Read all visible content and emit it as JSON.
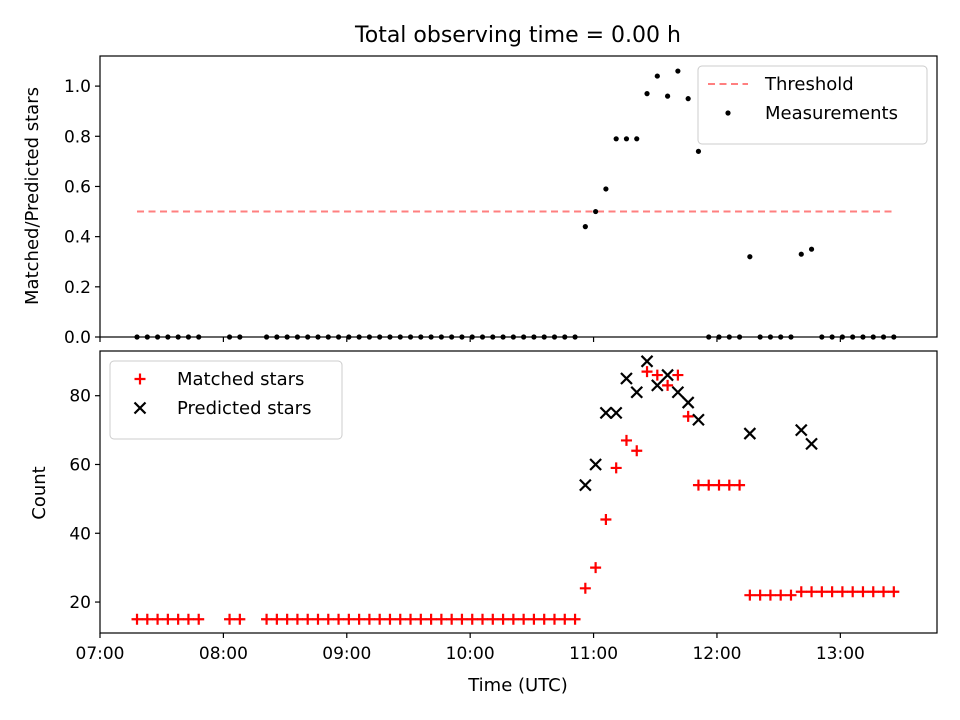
{
  "chart_data": [
    {
      "type": "scatter",
      "title": "Total observing time = 0.00 h",
      "xlabel": "",
      "ylabel": "Matched/Predicted stars",
      "xlim": [
        "07:00",
        "13:47"
      ],
      "ylim": [
        0,
        1.12
      ],
      "yticks": [
        0.0,
        0.2,
        0.4,
        0.6,
        0.8,
        1.0
      ],
      "ytick_labels": [
        "0.0",
        "0.2",
        "0.4",
        "0.6",
        "0.8",
        "1.0"
      ],
      "xtick_labels_visible": false,
      "legend_position": "top-right",
      "series": [
        {
          "name": "Threshold",
          "kind": "line",
          "style": "dashed",
          "color": "#ff7f7f",
          "x": [
            "07:18",
            "13:25"
          ],
          "y": [
            0.5,
            0.5
          ]
        },
        {
          "name": "Measurements",
          "kind": "scatter",
          "marker": "dot",
          "color": "#000000",
          "x": [
            "07:18",
            "07:23",
            "07:28",
            "07:33",
            "07:38",
            "07:43",
            "07:48",
            "08:03",
            "08:08",
            "08:21",
            "08:26",
            "08:31",
            "08:36",
            "08:41",
            "08:46",
            "08:51",
            "08:56",
            "09:01",
            "09:06",
            "09:11",
            "09:16",
            "09:21",
            "09:26",
            "09:31",
            "09:36",
            "09:41",
            "09:46",
            "09:51",
            "09:56",
            "10:01",
            "10:06",
            "10:11",
            "10:16",
            "10:21",
            "10:26",
            "10:31",
            "10:36",
            "10:41",
            "10:46",
            "10:51",
            "10:56",
            "11:01",
            "11:06",
            "11:11",
            "11:16",
            "11:21",
            "11:26",
            "11:31",
            "11:36",
            "11:41",
            "11:46",
            "11:51",
            "11:56",
            "12:01",
            "12:06",
            "12:11",
            "12:16",
            "12:21",
            "12:26",
            "12:31",
            "12:36",
            "12:41",
            "12:46",
            "12:51",
            "12:56",
            "13:01",
            "13:06",
            "13:11",
            "13:16",
            "13:21",
            "13:26"
          ],
          "y": [
            0,
            0,
            0,
            0,
            0,
            0,
            0,
            0,
            0,
            0,
            0,
            0,
            0,
            0,
            0,
            0,
            0,
            0,
            0,
            0,
            0,
            0,
            0,
            0,
            0,
            0,
            0,
            0,
            0,
            0,
            0,
            0,
            0,
            0,
            0,
            0,
            0,
            0,
            0,
            0,
            0.44,
            0.5,
            0.59,
            0.79,
            0.79,
            0.79,
            0.97,
            1.04,
            0.96,
            1.06,
            0.95,
            0.74,
            0,
            0,
            0,
            0,
            0.32,
            0,
            0,
            0,
            0,
            0.33,
            0.35,
            0,
            0,
            0,
            0,
            0,
            0,
            0,
            0
          ]
        }
      ]
    },
    {
      "type": "scatter",
      "title": "",
      "xlabel": "Time (UTC)",
      "ylabel": "Count",
      "xlim": [
        "07:00",
        "13:47"
      ],
      "ylim": [
        11,
        93
      ],
      "yticks": [
        20,
        40,
        60,
        80
      ],
      "ytick_labels": [
        "20",
        "40",
        "60",
        "80"
      ],
      "xticks": [
        "07:00",
        "08:00",
        "09:00",
        "10:00",
        "11:00",
        "12:00",
        "13:00"
      ],
      "xtick_labels": [
        "07:00",
        "08:00",
        "09:00",
        "10:00",
        "11:00",
        "12:00",
        "13:00"
      ],
      "legend_position": "top-left",
      "series": [
        {
          "name": "Matched stars",
          "kind": "scatter",
          "marker": "plus",
          "color": "#ff0000",
          "x": [
            "07:18",
            "07:23",
            "07:28",
            "07:33",
            "07:38",
            "07:43",
            "07:48",
            "08:03",
            "08:08",
            "08:21",
            "08:26",
            "08:31",
            "08:36",
            "08:41",
            "08:46",
            "08:51",
            "08:56",
            "09:01",
            "09:06",
            "09:11",
            "09:16",
            "09:21",
            "09:26",
            "09:31",
            "09:36",
            "09:41",
            "09:46",
            "09:51",
            "09:56",
            "10:01",
            "10:06",
            "10:11",
            "10:16",
            "10:21",
            "10:26",
            "10:31",
            "10:36",
            "10:41",
            "10:46",
            "10:51",
            "10:56",
            "11:01",
            "11:06",
            "11:11",
            "11:16",
            "11:21",
            "11:26",
            "11:31",
            "11:36",
            "11:41",
            "11:46",
            "11:51",
            "11:56",
            "12:01",
            "12:06",
            "12:11",
            "12:16",
            "12:21",
            "12:26",
            "12:31",
            "12:36",
            "12:41",
            "12:46",
            "12:51",
            "12:56",
            "13:01",
            "13:06",
            "13:11",
            "13:16",
            "13:21",
            "13:26"
          ],
          "y": [
            15,
            15,
            15,
            15,
            15,
            15,
            15,
            15,
            15,
            15,
            15,
            15,
            15,
            15,
            15,
            15,
            15,
            15,
            15,
            15,
            15,
            15,
            15,
            15,
            15,
            15,
            15,
            15,
            15,
            15,
            15,
            15,
            15,
            15,
            15,
            15,
            15,
            15,
            15,
            15,
            24,
            30,
            44,
            59,
            67,
            64,
            87,
            86,
            83,
            86,
            74,
            54,
            54,
            54,
            54,
            54,
            22,
            22,
            22,
            22,
            22,
            23,
            23,
            23,
            23,
            23,
            23,
            23,
            23,
            23,
            23
          ]
        },
        {
          "name": "Predicted stars",
          "kind": "scatter",
          "marker": "x",
          "color": "#000000",
          "x": [
            "10:56",
            "11:01",
            "11:06",
            "11:11",
            "11:16",
            "11:21",
            "11:26",
            "11:31",
            "11:36",
            "11:41",
            "11:46",
            "11:51",
            "12:16",
            "12:41",
            "12:46"
          ],
          "y": [
            54,
            60,
            75,
            75,
            85,
            81,
            90,
            83,
            86,
            81,
            78,
            73,
            69,
            70,
            66
          ]
        }
      ]
    }
  ]
}
